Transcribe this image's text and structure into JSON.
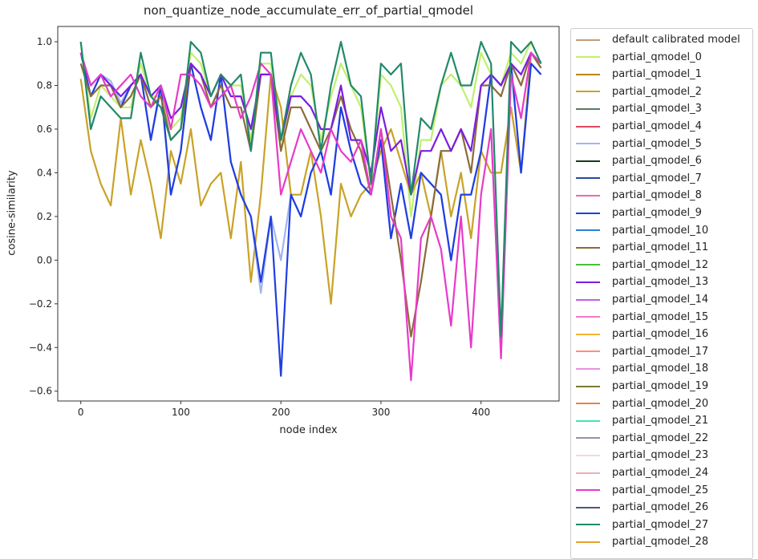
{
  "chart_data": {
    "type": "line",
    "title": "non_quantize_node_accumulate_err_of_partial_qmodel",
    "xlabel": "node index",
    "ylabel": "cosine-similarity",
    "xlim": [
      -23,
      478
    ],
    "ylim": [
      -0.645,
      1.07
    ],
    "xticks": [
      0,
      100,
      200,
      300,
      400
    ],
    "xtick_labels": [
      "0",
      "100",
      "200",
      "300",
      "400"
    ],
    "yticks": [
      -0.6,
      -0.4,
      -0.2,
      0.0,
      0.2,
      0.4,
      0.6,
      0.8,
      1.0
    ],
    "ytick_labels": [
      "−0.6",
      "−0.4",
      "−0.2",
      "0.0",
      "0.2",
      "0.4",
      "0.6",
      "0.8",
      "1.0"
    ],
    "grid": false,
    "legend_placement": "outside-right",
    "x": [
      0,
      10,
      20,
      30,
      40,
      50,
      60,
      70,
      80,
      90,
      100,
      110,
      120,
      130,
      140,
      150,
      160,
      170,
      180,
      190,
      200,
      210,
      220,
      230,
      240,
      250,
      260,
      270,
      280,
      290,
      300,
      310,
      320,
      330,
      340,
      350,
      360,
      370,
      380,
      390,
      400,
      410,
      420,
      430,
      440,
      450,
      460
    ],
    "series": [
      {
        "name": "default calibrated model",
        "color": "#c39b77",
        "values": null
      },
      {
        "name": "partial_qmodel_0",
        "color": "#c1f06e",
        "values": [
          1.0,
          0.65,
          0.8,
          0.75,
          0.7,
          0.7,
          0.9,
          0.75,
          0.75,
          0.6,
          0.65,
          0.95,
          0.9,
          0.75,
          0.85,
          0.8,
          0.8,
          0.55,
          0.9,
          0.9,
          0.5,
          0.75,
          0.85,
          0.8,
          0.55,
          0.75,
          0.9,
          0.8,
          0.7,
          0.35,
          0.85,
          0.8,
          0.7,
          0.2,
          0.55,
          0.55,
          0.8,
          0.85,
          0.8,
          0.7,
          0.95,
          0.85,
          0.8,
          0.95,
          0.9,
          1.0,
          0.9
        ]
      },
      {
        "name": "partial_qmodel_1",
        "color": "#b8860b",
        "values": null
      },
      {
        "name": "partial_qmodel_2",
        "color": "#c9a227",
        "values": [
          0.83,
          0.5,
          0.35,
          0.25,
          0.65,
          0.3,
          0.55,
          0.35,
          0.1,
          0.5,
          0.35,
          0.6,
          0.25,
          0.35,
          0.4,
          0.1,
          0.45,
          -0.1,
          0.3,
          0.85,
          0.7,
          0.3,
          0.3,
          0.5,
          0.2,
          -0.2,
          0.35,
          0.2,
          0.3,
          0.35,
          0.5,
          0.6,
          0.45,
          0.3,
          0.4,
          0.2,
          0.5,
          0.2,
          0.4,
          0.1,
          0.5,
          0.4,
          0.4,
          0.7,
          0.4,
          0.95,
          0.88
        ]
      },
      {
        "name": "partial_qmodel_3",
        "color": "#5a7a60",
        "values": null
      },
      {
        "name": "partial_qmodel_4",
        "color": "#e0485e",
        "values": null
      },
      {
        "name": "partial_qmodel_5",
        "color": "#a3b4f0",
        "values": [
          0.95,
          0.75,
          0.85,
          0.82,
          0.72,
          0.8,
          0.85,
          0.55,
          0.78,
          0.3,
          0.5,
          0.9,
          0.7,
          0.55,
          0.85,
          0.45,
          0.3,
          0.2,
          -0.15,
          0.2,
          0.0,
          0.3,
          0.2,
          0.4,
          0.5,
          0.3,
          0.7,
          0.5,
          0.35,
          0.3,
          0.55,
          0.1,
          0.35,
          0.1,
          0.4,
          0.35,
          0.3,
          0.0,
          0.3,
          0.3,
          0.5,
          0.85,
          0.8,
          0.9,
          0.4,
          0.9,
          0.85
        ]
      },
      {
        "name": "partial_qmodel_6",
        "color": "#1a3a1a",
        "values": null
      },
      {
        "name": "partial_qmodel_7",
        "color": "#2849a0",
        "values": null
      },
      {
        "name": "partial_qmodel_8",
        "color": "#ea6aa8",
        "values": null
      },
      {
        "name": "partial_qmodel_9",
        "color": "#1f3ee0",
        "values": [
          0.95,
          0.75,
          0.85,
          0.8,
          0.7,
          0.8,
          0.85,
          0.55,
          0.8,
          0.3,
          0.5,
          0.9,
          0.7,
          0.55,
          0.85,
          0.45,
          0.3,
          0.2,
          -0.1,
          0.2,
          -0.53,
          0.3,
          0.2,
          0.4,
          0.5,
          0.3,
          0.7,
          0.5,
          0.35,
          0.3,
          0.55,
          0.1,
          0.35,
          0.1,
          0.4,
          0.35,
          0.3,
          0.0,
          0.3,
          0.3,
          0.5,
          0.85,
          0.8,
          0.9,
          0.4,
          0.9,
          0.85
        ]
      },
      {
        "name": "partial_qmodel_10",
        "color": "#2f7fd0",
        "values": null
      },
      {
        "name": "partial_qmodel_11",
        "color": "#8b6b3a",
        "values": [
          0.9,
          0.75,
          0.8,
          0.8,
          0.7,
          0.75,
          0.85,
          0.7,
          0.75,
          0.55,
          0.6,
          0.9,
          0.85,
          0.7,
          0.8,
          0.7,
          0.7,
          0.5,
          0.85,
          0.85,
          0.5,
          0.7,
          0.7,
          0.6,
          0.5,
          0.6,
          0.75,
          0.6,
          0.5,
          0.3,
          0.6,
          0.3,
          0.0,
          -0.35,
          -0.1,
          0.2,
          0.5,
          0.5,
          0.6,
          0.4,
          0.8,
          0.8,
          0.75,
          0.9,
          0.8,
          0.95,
          0.88
        ]
      },
      {
        "name": "partial_qmodel_12",
        "color": "#4cbc3c",
        "values": null
      },
      {
        "name": "partial_qmodel_13",
        "color": "#7a1ee0",
        "values": [
          0.95,
          0.8,
          0.85,
          0.8,
          0.75,
          0.8,
          0.85,
          0.75,
          0.8,
          0.65,
          0.7,
          0.9,
          0.85,
          0.75,
          0.85,
          0.75,
          0.75,
          0.6,
          0.85,
          0.85,
          0.55,
          0.75,
          0.75,
          0.7,
          0.6,
          0.6,
          0.8,
          0.55,
          0.55,
          0.4,
          0.7,
          0.5,
          0.55,
          0.3,
          0.5,
          0.5,
          0.6,
          0.5,
          0.6,
          0.5,
          0.8,
          0.85,
          0.8,
          0.9,
          0.85,
          0.95,
          0.9
        ]
      },
      {
        "name": "partial_qmodel_14",
        "color": "#c060e0",
        "values": null
      },
      {
        "name": "partial_qmodel_15",
        "color": "#f77ac8",
        "values": null
      },
      {
        "name": "partial_qmodel_16",
        "color": "#f5b436",
        "values": null
      },
      {
        "name": "partial_qmodel_17",
        "color": "#f5957a",
        "values": null
      },
      {
        "name": "partial_qmodel_18",
        "color": "#e893e0",
        "values": null
      },
      {
        "name": "partial_qmodel_19",
        "color": "#7a7a30",
        "values": null
      },
      {
        "name": "partial_qmodel_20",
        "color": "#ea8048",
        "values": null
      },
      {
        "name": "partial_qmodel_21",
        "color": "#3ee8a8",
        "values": null
      },
      {
        "name": "partial_qmodel_22",
        "color": "#9a90a8",
        "values": null
      },
      {
        "name": "partial_qmodel_23",
        "color": "#efd8e0",
        "values": null
      },
      {
        "name": "partial_qmodel_24",
        "color": "#eab0b0",
        "values": null
      },
      {
        "name": "partial_qmodel_25",
        "color": "#e83ac8",
        "values": [
          0.95,
          0.8,
          0.85,
          0.75,
          0.8,
          0.85,
          0.75,
          0.7,
          0.8,
          0.6,
          0.85,
          0.85,
          0.8,
          0.7,
          0.75,
          0.8,
          0.65,
          0.75,
          0.9,
          0.85,
          0.3,
          0.45,
          0.6,
          0.5,
          0.4,
          0.6,
          0.5,
          0.45,
          0.55,
          0.3,
          0.6,
          0.2,
          0.1,
          -0.55,
          0.1,
          0.2,
          0.05,
          -0.3,
          0.2,
          -0.4,
          0.3,
          0.6,
          -0.45,
          0.85,
          0.65,
          0.95,
          0.9
        ]
      },
      {
        "name": "partial_qmodel_26",
        "color": "#4a5a7a",
        "values": null
      },
      {
        "name": "partial_qmodel_27",
        "color": "#22896a",
        "values": [
          1.0,
          0.6,
          0.75,
          0.7,
          0.65,
          0.65,
          0.95,
          0.75,
          0.7,
          0.55,
          0.6,
          1.0,
          0.95,
          0.75,
          0.85,
          0.8,
          0.85,
          0.5,
          0.95,
          0.95,
          0.55,
          0.8,
          0.95,
          0.85,
          0.5,
          0.8,
          1.0,
          0.8,
          0.75,
          0.35,
          0.9,
          0.85,
          0.9,
          0.3,
          0.65,
          0.6,
          0.8,
          0.95,
          0.8,
          0.8,
          1.0,
          0.9,
          -0.35,
          1.0,
          0.95,
          1.0,
          0.9
        ]
      },
      {
        "name": "partial_qmodel_28",
        "color": "#e8a030",
        "values": null
      }
    ]
  }
}
